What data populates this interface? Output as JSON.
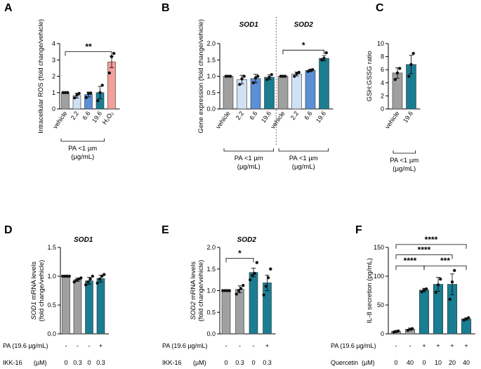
{
  "panels": [
    {
      "label": "A",
      "ylabel": "Intracellular ROS (fold change/vehicle)",
      "ylim": [
        0,
        4
      ],
      "yticks": [
        0,
        1,
        2,
        3,
        4
      ],
      "decimals": 0,
      "categories": [
        "vehicle",
        "2.2",
        "6.6",
        "19.6",
        "H₂O₂"
      ],
      "values": [
        1.0,
        0.82,
        0.88,
        1.0,
        2.88
      ],
      "errors": [
        0,
        0.15,
        0.15,
        0.38,
        0.35
      ],
      "points": [
        [
          1,
          1,
          1
        ],
        [
          0.68,
          0.85,
          0.95
        ],
        [
          0.7,
          0.95,
          0.97
        ],
        [
          0.5,
          1.0,
          1.45
        ],
        [
          2.2,
          3.2,
          3.4
        ]
      ],
      "colors": [
        "#a0a0a0",
        "#cfe1f5",
        "#5b8fd6",
        "#1a7d91",
        "#f4a09a"
      ],
      "group_label": "PA <1 µm",
      "group_unit": "(µg/mL)",
      "significance": [
        {
          "from": 0,
          "to": 4,
          "y": 3.5,
          "text": "**"
        }
      ]
    },
    {
      "label": "B",
      "ylabel": "Gene expression (fold change/vehicle)",
      "ylim": [
        0,
        2
      ],
      "yticks": [
        0,
        0.5,
        1,
        1.5,
        2
      ],
      "decimals": 1,
      "categories": [
        "vehicle",
        "2.2",
        "6.6",
        "19.6",
        "vehicle",
        "2.2",
        "6.6",
        "19.6"
      ],
      "values": [
        1.0,
        0.9,
        0.93,
        0.97,
        1.0,
        1.07,
        1.18,
        1.55
      ],
      "errors": [
        0,
        0.13,
        0.13,
        0.07,
        0,
        0.06,
        0.04,
        0.08
      ],
      "points": [
        [
          1,
          1,
          1
        ],
        [
          0.75,
          0.92,
          1.0
        ],
        [
          0.8,
          0.95,
          1.0
        ],
        [
          0.9,
          0.97,
          1.05
        ],
        [
          1,
          1,
          1
        ],
        [
          1.0,
          1.08,
          1.12
        ],
        [
          1.15,
          1.18,
          1.2
        ],
        [
          1.5,
          1.55,
          1.72
        ]
      ],
      "colors": [
        "#a0a0a0",
        "#cfe1f5",
        "#5b8fd6",
        "#1a7d91",
        "#a0a0a0",
        "#cfe1f5",
        "#5b8fd6",
        "#1a7d91"
      ],
      "subtitles": [
        "SOD1",
        "SOD2"
      ],
      "group_label": "PA <1 µm",
      "group_unit": "(µg/mL)",
      "significance": [
        {
          "from": 4,
          "to": 7,
          "y": 1.8,
          "text": "*"
        }
      ]
    },
    {
      "label": "C",
      "ylabel": "GSH:GSSG ratio",
      "ylim": [
        0,
        10
      ],
      "yticks": [
        0,
        2,
        4,
        6,
        8,
        10
      ],
      "decimals": 0,
      "categories": [
        "vehicle",
        "19.6"
      ],
      "values": [
        5.5,
        6.8
      ],
      "errors": [
        0.8,
        1.4
      ],
      "points": [
        [
          4.5,
          5.5,
          6.2
        ],
        [
          5.0,
          6.8,
          8.5
        ]
      ],
      "colors": [
        "#a0a0a0",
        "#1a7d91"
      ],
      "group_label": "PA <1 µm",
      "group_unit": "(µg/mL)",
      "significance": []
    },
    {
      "label": "D",
      "title": "SOD1",
      "ylabel_it": "SOD1",
      "ylabel_rest": " mRNA levels",
      "ylabel2": "(fold change/vehicle)",
      "ylim": [
        0,
        1.5
      ],
      "yticks": [
        0,
        0.5,
        1,
        1.5
      ],
      "decimals": 1,
      "values": [
        1.0,
        0.94,
        0.92,
        0.96
      ],
      "errors": [
        0,
        0.03,
        0.06,
        0.06
      ],
      "points": [
        [
          1,
          1,
          1,
          1
        ],
        [
          0.9,
          0.93,
          0.95,
          0.97
        ],
        [
          0.85,
          0.9,
          0.95,
          1.0
        ],
        [
          0.88,
          0.95,
          1.0,
          1.03
        ]
      ],
      "colors": [
        "#a0a0a0",
        "#a0a0a0",
        "#1a7d91",
        "#1a7d91"
      ],
      "row1_label": "PA (19.6 µg/mL)",
      "row1": [
        "-",
        "-",
        "-",
        "+"
      ],
      "row2_label": "IKK-16",
      "row2_unit": "(µM)",
      "row2": [
        "0",
        "0.3",
        "0",
        "0.3"
      ],
      "significance": []
    },
    {
      "label": "E",
      "title": "SOD2",
      "ylabel_it": "SOD2",
      "ylabel_rest": " mRNA levels",
      "ylabel2": "(fold change/vehicle)",
      "ylim": [
        0,
        2
      ],
      "yticks": [
        0,
        0.5,
        1,
        1.5,
        2
      ],
      "decimals": 1,
      "values": [
        1.0,
        1.03,
        1.42,
        1.18
      ],
      "errors": [
        0,
        0.08,
        0.1,
        0.18
      ],
      "points": [
        [
          1,
          1,
          1,
          1
        ],
        [
          0.92,
          1.0,
          1.05,
          1.12
        ],
        [
          1.25,
          1.35,
          1.4,
          1.65
        ],
        [
          0.9,
          1.1,
          1.3,
          1.5
        ]
      ],
      "colors": [
        "#a0a0a0",
        "#a0a0a0",
        "#1a7d91",
        "#1a7d91"
      ],
      "row1_label": "PA (19.6 µg/mL)",
      "row1": [
        "-",
        "-",
        "-",
        "+"
      ],
      "row2_label": "IKK-16",
      "row2_unit": "(µM)",
      "row2": [
        "0",
        "0.3",
        "0",
        "0.3"
      ],
      "significance": [
        {
          "from": 0,
          "to": 2,
          "y": 1.75,
          "text": "*"
        }
      ]
    },
    {
      "label": "F",
      "ylabel": "IL-8 secretion  (pg/mL)",
      "ylim": [
        0,
        150
      ],
      "yticks": [
        0,
        50,
        100,
        150
      ],
      "decimals": 0,
      "values": [
        4,
        8,
        76,
        86,
        86,
        26
      ],
      "errors": [
        1.5,
        2,
        3,
        12,
        18,
        2
      ],
      "points": [
        [
          3,
          4,
          5
        ],
        [
          6,
          8,
          9
        ],
        [
          73,
          76,
          78
        ],
        [
          72,
          85,
          95
        ],
        [
          60,
          90,
          110
        ],
        [
          24,
          26,
          28
        ]
      ],
      "colors": [
        "#a0a0a0",
        "#a0a0a0",
        "#1a7d91",
        "#1a7d91",
        "#1a7d91",
        "#1a7d91"
      ],
      "row1_label": "PA (19.6 µg/mL)",
      "row1": [
        "-",
        "-",
        "+",
        "+",
        "+",
        "+"
      ],
      "row2_label": "Quercetin",
      "row2_unit": "(µM)",
      "row2": [
        "0",
        "40",
        "0",
        "10",
        "20",
        "40"
      ],
      "significance": [
        {
          "from": 0,
          "to": 2,
          "y": 118,
          "text": "****"
        },
        {
          "from": 2,
          "to": 5,
          "y": 118,
          "text": "***"
        },
        {
          "from": 0,
          "to": 4,
          "y": 137,
          "text": "****"
        },
        {
          "from": 0,
          "to": 5,
          "y": 155,
          "text": "****"
        }
      ]
    }
  ]
}
